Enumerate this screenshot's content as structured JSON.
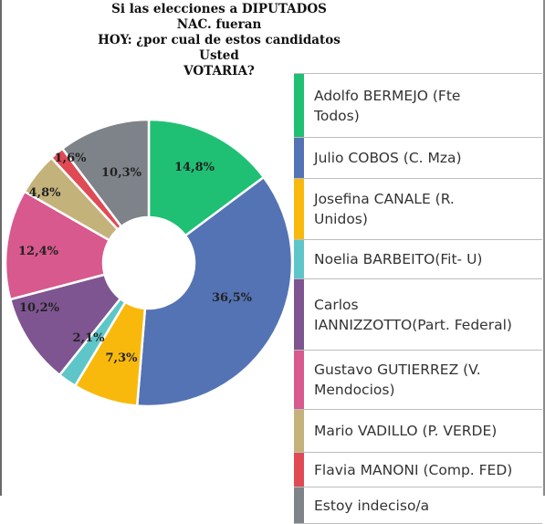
{
  "title_lines": [
    "Si las elecciones a DIPUTADOS NAC. fueran",
    "HOY: ¿por cual de estos candidatos Usted",
    "VOTARIA?"
  ],
  "chart_data": {
    "type": "pie",
    "donut": true,
    "title": "Si las elecciones a DIPUTADOS NAC. fueran HOY: ¿por cual de estos candidatos Usted VOTARIA?",
    "legend_position": "right",
    "series": [
      {
        "name": "Adolfo BERMEJO (Fte Todos)",
        "value": 14.8,
        "label": "14,8%",
        "color": "#1fc074"
      },
      {
        "name": "Julio COBOS (C. Mza)",
        "value": 36.5,
        "label": "36,5%",
        "color": "#5473b4"
      },
      {
        "name": "Josefina CANALE (R. Unidos)",
        "value": 7.3,
        "label": "7,3%",
        "color": "#f9b90c"
      },
      {
        "name": "Noelia BARBEITO(Fit- U)",
        "value": 2.1,
        "label": "2,1%",
        "color": "#5ec6c9"
      },
      {
        "name": "Carlos IANNIZZOTTO(Part. Federal)",
        "value": 10.2,
        "label": "10,2%",
        "color": "#7e5590"
      },
      {
        "name": "Gustavo GUTIERREZ (V. Mendocios)",
        "value": 12.4,
        "label": "12,4%",
        "color": "#d7598d"
      },
      {
        "name": "Mario VADILLO (P. VERDE)",
        "value": 4.8,
        "label": "4,8%",
        "color": "#c4b27b"
      },
      {
        "name": "Flavia MANONI (Comp. FED)",
        "value": 1.6,
        "label": "1,6%",
        "color": "#e04a55"
      },
      {
        "name": "Estoy indeciso/a",
        "value": 10.3,
        "label": "10,3%",
        "color": "#7e8389"
      }
    ]
  },
  "legend": [
    {
      "lines": [
        "Adolfo BERMEJO (Fte",
        "Todos)"
      ]
    },
    {
      "lines": [
        "Julio COBOS (C. Mza)"
      ]
    },
    {
      "lines": [
        "Josefina CANALE (R.",
        "Unidos)"
      ]
    },
    {
      "lines": [
        "Noelia BARBEITO(Fit- U)"
      ]
    },
    {
      "lines": [
        "Carlos",
        "IANNIZZOTTO(Part. Federal)"
      ]
    },
    {
      "lines": [
        "Gustavo GUTIERREZ (V.",
        "Mendocios)"
      ]
    },
    {
      "lines": [
        "Mario VADILLO (P. VERDE)"
      ]
    },
    {
      "lines": [
        "Flavia MANONI (Comp. FED)"
      ]
    },
    {
      "lines": [
        "Estoy indeciso/a"
      ]
    }
  ]
}
